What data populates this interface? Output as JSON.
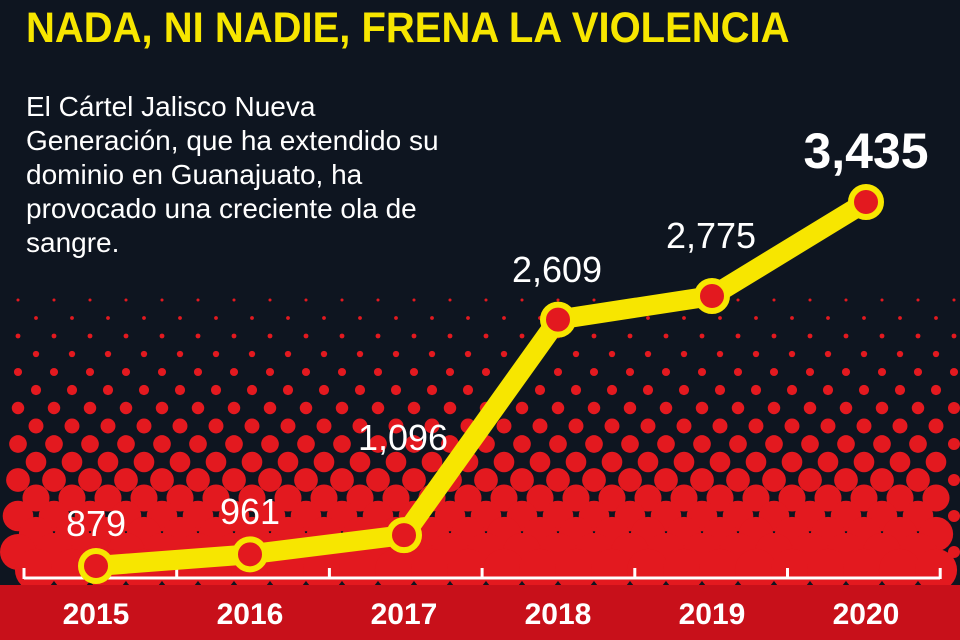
{
  "title": "NADA, NI NADIE, FRENA LA VIOLENCIA",
  "description": "El Cártel Jalisco Nueva Generación, que ha extendido su dominio en Guanajuato, ha provocado una creciente ola de sangre.",
  "colors": {
    "background": "#0e1520",
    "line": "#f7e600",
    "points": "#e3191f",
    "band": "#c8101a",
    "title": "#f7e600"
  },
  "chart_data": {
    "type": "line",
    "categories": [
      "2015",
      "2016",
      "2017",
      "2018",
      "2019",
      "2020"
    ],
    "values": [
      879,
      961,
      1096,
      2609,
      2775,
      3435
    ],
    "data_labels": [
      "879",
      "961",
      "1,096",
      "2,609",
      "2,775",
      "3,435"
    ],
    "title": "NADA, NI NADIE, FRENA LA VIOLENCIA",
    "xlabel": "",
    "ylabel": "",
    "grid": false
  }
}
